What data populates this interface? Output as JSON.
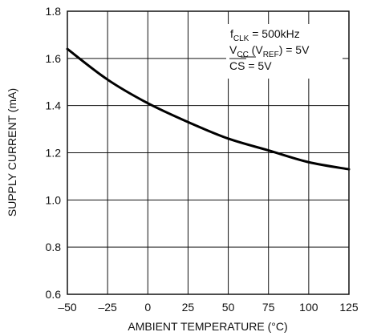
{
  "chart_data": {
    "type": "line",
    "title": "",
    "xlabel": "AMBIENT TEMPERATURE (°C)",
    "ylabel": "SUPPLY CURRENT (mA)",
    "xlim": [
      -50,
      125
    ],
    "ylim": [
      0.6,
      1.8
    ],
    "x_ticks": [
      -50,
      -25,
      0,
      25,
      50,
      75,
      100,
      125
    ],
    "y_ticks": [
      0.6,
      0.8,
      1.0,
      1.2,
      1.4,
      1.6,
      1.8
    ],
    "x_tick_labels": [
      "–50",
      "–25",
      "0",
      "25",
      "50",
      "75",
      "100",
      "125"
    ],
    "y_tick_labels": [
      "0.6",
      "0.8",
      "1.0",
      "1.2",
      "1.4",
      "1.6",
      "1.8"
    ],
    "grid": true,
    "series": [
      {
        "x": [
          -50,
          -25,
          0,
          25,
          50,
          75,
          100,
          125
        ],
        "y": [
          1.64,
          1.51,
          1.41,
          1.33,
          1.26,
          1.21,
          1.16,
          1.13
        ],
        "color": "#000000"
      }
    ],
    "annotation": {
      "line1_main": "f",
      "line1_sub": "CLK",
      "line1_rest": " = 500kHz",
      "line2_main": "V",
      "line2_sub": "CC",
      "line2_mid": " (V",
      "line2_sub2": "REF",
      "line2_rest": ") = 5V",
      "line3_text": "CS",
      "line3_rest": " = 5V"
    }
  }
}
